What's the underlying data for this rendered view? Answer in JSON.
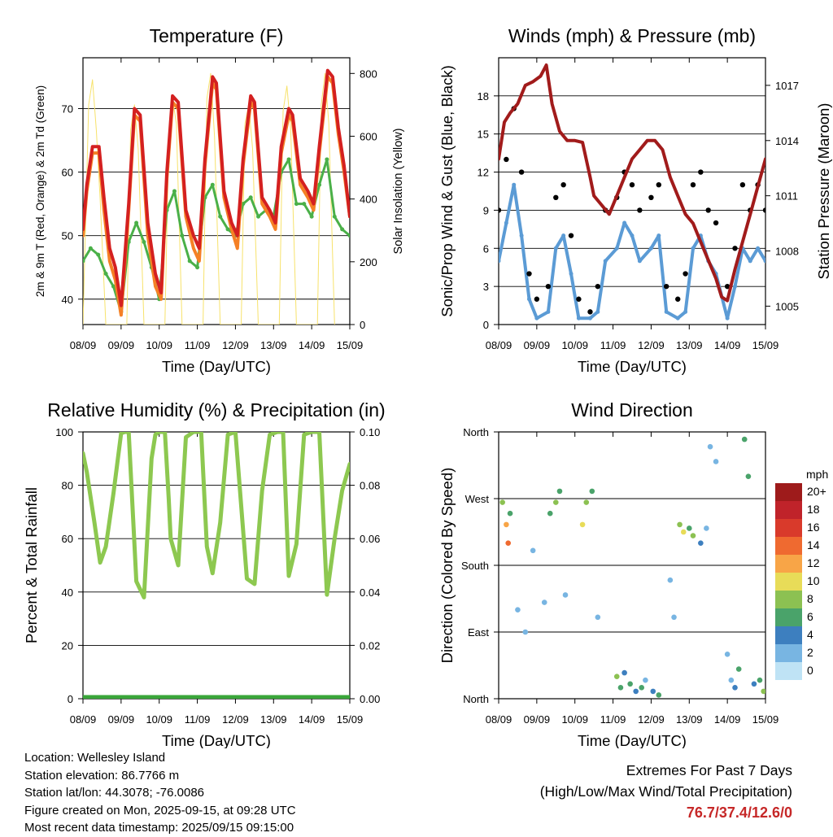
{
  "footer": {
    "location": "Location: Wellesley Island",
    "elevation": "Station elevation: 86.7766 m",
    "latlon": "Station lat/lon: 44.3078; -76.0086",
    "created": "Figure created on Mon, 2025-09-15, at 09:28 UTC",
    "timestamp": "Most recent data timestamp: 2025/09/15 09:15:00",
    "extremes_title": "Extremes For Past 7 Days",
    "extremes_sub": "(High/Low/Max Wind/Total Precipitation)",
    "extremes_values": "76.7/37.4/12.6/0"
  },
  "colors": {
    "temp_9m": "#d42020",
    "temp_2m": "#f58025",
    "dewpoint": "#4ab048",
    "solar": "#f7e26b",
    "wind": "#5b9bd5",
    "gust": "#000000",
    "pressure": "#a11b1b",
    "humidity": "#8dc850",
    "precip": "#3aa63a"
  },
  "chart_data": [
    {
      "id": "temperature",
      "type": "line",
      "title": "Temperature (F)",
      "xlabel": "Time (Day/UTC)",
      "ylabel": "2m & 9m T (Red, Orange) & 2m Td (Green)",
      "y2label": "Solar Insolation (Yellow)",
      "x_ticks": [
        "08/09",
        "09/09",
        "10/09",
        "11/09",
        "12/09",
        "13/09",
        "14/09",
        "15/09"
      ],
      "xlim": [
        0,
        7
      ],
      "ylim": [
        36,
        78
      ],
      "y_ticks": [
        40,
        50,
        60,
        70
      ],
      "y2lim": [
        0,
        850
      ],
      "y2_ticks": [
        0,
        200,
        400,
        600,
        800
      ],
      "grid": true,
      "series": [
        {
          "name": "9m T",
          "color_key": "temp_9m",
          "x": [
            0,
            0.1,
            0.25,
            0.42,
            0.55,
            0.7,
            0.85,
            1.0,
            1.2,
            1.35,
            1.5,
            1.7,
            1.9,
            2.05,
            2.2,
            2.35,
            2.5,
            2.7,
            2.9,
            3.05,
            3.2,
            3.4,
            3.5,
            3.7,
            3.9,
            4.05,
            4.2,
            4.4,
            4.5,
            4.7,
            4.9,
            5.05,
            5.2,
            5.4,
            5.5,
            5.7,
            5.9,
            6.05,
            6.2,
            6.42,
            6.55,
            6.7,
            6.85,
            7.0
          ],
          "y": [
            51,
            58,
            64,
            64,
            56,
            48,
            45,
            39,
            55,
            70,
            69,
            52,
            44,
            41,
            60,
            72,
            71,
            54,
            50,
            48,
            62,
            75,
            74,
            57,
            52,
            50,
            62,
            72,
            71,
            56,
            54,
            52,
            64,
            70,
            69,
            59,
            57,
            55,
            64,
            76,
            75,
            67,
            61,
            53
          ]
        },
        {
          "name": "2m T",
          "color_key": "temp_2m",
          "x": [
            0,
            0.1,
            0.25,
            0.42,
            0.55,
            0.7,
            0.85,
            1.0,
            1.2,
            1.35,
            1.5,
            1.7,
            1.9,
            2.05,
            2.2,
            2.35,
            2.5,
            2.7,
            2.9,
            3.05,
            3.2,
            3.4,
            3.5,
            3.7,
            3.9,
            4.05,
            4.2,
            4.4,
            4.5,
            4.7,
            4.9,
            5.05,
            5.2,
            5.4,
            5.5,
            5.7,
            5.9,
            6.05,
            6.2,
            6.42,
            6.55,
            6.7,
            6.85,
            7.0
          ],
          "y": [
            50,
            57,
            63,
            63,
            54,
            46,
            43,
            37.5,
            54,
            69,
            68,
            50,
            42,
            40,
            59,
            71,
            70,
            53,
            48,
            46,
            61,
            74,
            73,
            56,
            51,
            48,
            61,
            71,
            70,
            55,
            53,
            51,
            63,
            69,
            68,
            58,
            56,
            54,
            63,
            75,
            74,
            66,
            60,
            53
          ]
        },
        {
          "name": "2m Td",
          "color_key": "dewpoint",
          "x": [
            0,
            0.2,
            0.4,
            0.6,
            0.8,
            1.0,
            1.2,
            1.4,
            1.6,
            1.8,
            2.0,
            2.2,
            2.4,
            2.6,
            2.8,
            3.0,
            3.2,
            3.4,
            3.6,
            3.8,
            4.0,
            4.2,
            4.4,
            4.6,
            4.8,
            5.0,
            5.2,
            5.4,
            5.6,
            5.8,
            6.0,
            6.2,
            6.4,
            6.6,
            6.8,
            7.0
          ],
          "y": [
            46,
            48,
            47,
            44,
            42,
            38,
            49,
            52,
            49,
            45,
            40,
            54,
            57,
            50,
            46,
            45,
            56,
            58,
            53,
            51,
            50,
            55,
            56,
            53,
            54,
            53,
            60,
            62,
            55,
            55,
            53,
            58,
            62,
            53,
            51,
            50
          ]
        },
        {
          "name": "Solar",
          "color_key": "solar",
          "axis": "y2",
          "x": [
            0,
            0.15,
            0.25,
            0.35,
            0.45,
            0.6,
            1.15,
            1.25,
            1.35,
            1.45,
            1.6,
            2.15,
            2.25,
            2.35,
            2.45,
            2.6,
            3.15,
            3.25,
            3.35,
            3.45,
            3.6,
            4.15,
            4.25,
            4.35,
            4.45,
            4.6,
            5.15,
            5.25,
            5.35,
            5.45,
            5.6,
            6.15,
            6.25,
            6.35,
            6.45,
            6.6
          ],
          "y": [
            0,
            700,
            780,
            620,
            400,
            0,
            0,
            620,
            700,
            560,
            0,
            0,
            580,
            720,
            640,
            0,
            0,
            720,
            800,
            600,
            0,
            0,
            640,
            700,
            560,
            0,
            0,
            680,
            760,
            620,
            0,
            0,
            700,
            800,
            640,
            0
          ]
        }
      ]
    },
    {
      "id": "winds",
      "type": "scatter",
      "title": "Winds (mph) & Pressure (mb)",
      "xlabel": "Time (Day/UTC)",
      "ylabel": "Sonic/Prop Wind & Gust (Blue, Black)",
      "y2label": "Station Pressure (Maroon)",
      "x_ticks": [
        "08/09",
        "09/09",
        "10/09",
        "11/09",
        "12/09",
        "13/09",
        "14/09",
        "15/09"
      ],
      "xlim": [
        0,
        7
      ],
      "ylim": [
        0,
        21
      ],
      "y_ticks": [
        0,
        3,
        6,
        9,
        12,
        15,
        18
      ],
      "y2lim": [
        1004,
        1018.5
      ],
      "y2_ticks": [
        1005,
        1008,
        1011,
        1014,
        1017
      ],
      "grid": true,
      "series": [
        {
          "name": "Sonic/Prop Wind",
          "color_key": "wind",
          "x": [
            0,
            0.2,
            0.4,
            0.6,
            0.8,
            1.0,
            1.3,
            1.5,
            1.7,
            1.9,
            2.1,
            2.4,
            2.6,
            2.8,
            3.1,
            3.3,
            3.5,
            3.7,
            4.0,
            4.2,
            4.4,
            4.7,
            4.9,
            5.1,
            5.3,
            5.5,
            5.7,
            6.0,
            6.2,
            6.4,
            6.6,
            6.8,
            7.0
          ],
          "y": [
            5,
            8,
            11,
            7,
            2,
            0.5,
            1,
            6,
            7,
            4,
            0.5,
            0.5,
            1,
            5,
            6,
            8,
            7,
            5,
            6,
            7,
            1,
            0.5,
            1,
            6,
            7,
            5,
            4,
            0.5,
            3,
            6,
            5,
            6,
            5
          ]
        },
        {
          "name": "Gust",
          "color_key": "gust",
          "x": [
            0,
            0.2,
            0.4,
            0.6,
            0.8,
            1.0,
            1.3,
            1.5,
            1.7,
            1.9,
            2.1,
            2.4,
            2.6,
            2.8,
            3.1,
            3.3,
            3.5,
            3.7,
            4.0,
            4.2,
            4.4,
            4.7,
            4.9,
            5.1,
            5.3,
            5.5,
            5.7,
            6.0,
            6.2,
            6.4,
            6.6,
            6.8,
            7.0
          ],
          "y": [
            9,
            13,
            17,
            12,
            4,
            2,
            3,
            10,
            11,
            7,
            2,
            1,
            3,
            9,
            10,
            12,
            11,
            9,
            10,
            11,
            3,
            2,
            4,
            11,
            12,
            9,
            8,
            3,
            6,
            11,
            9,
            11,
            9
          ]
        },
        {
          "name": "Station Pressure",
          "color_key": "pressure",
          "axis": "y2",
          "x": [
            0,
            0.15,
            0.3,
            0.5,
            0.7,
            0.9,
            1.1,
            1.25,
            1.4,
            1.6,
            1.8,
            2.0,
            2.2,
            2.4,
            2.5,
            2.7,
            2.9,
            3.1,
            3.3,
            3.5,
            3.7,
            3.9,
            4.1,
            4.3,
            4.5,
            4.7,
            4.9,
            5.1,
            5.3,
            5.5,
            5.7,
            5.85,
            6.0,
            6.2,
            6.4,
            6.6,
            6.8,
            7.0
          ],
          "y": [
            1013,
            1015,
            1015.5,
            1016,
            1017,
            1017.2,
            1017.5,
            1018.1,
            1016,
            1014.5,
            1014,
            1014,
            1013.9,
            1012,
            1011,
            1010.5,
            1010,
            1011,
            1012,
            1013,
            1013.5,
            1014,
            1014,
            1013.5,
            1012,
            1011,
            1010,
            1009.5,
            1008.5,
            1007.5,
            1006.5,
            1005.5,
            1005.3,
            1007,
            1008.5,
            1010,
            1011.5,
            1013
          ]
        }
      ]
    },
    {
      "id": "humidity",
      "type": "line",
      "title": "Relative Humidity (%) & Precipitation (in)",
      "xlabel": "Time (Day/UTC)",
      "ylabel": "Percent & Total Rainfall",
      "x_ticks": [
        "08/09",
        "09/09",
        "10/09",
        "11/09",
        "12/09",
        "13/09",
        "14/09",
        "15/09"
      ],
      "xlim": [
        0,
        7
      ],
      "ylim": [
        0,
        100
      ],
      "y_ticks": [
        0,
        20,
        40,
        60,
        80,
        100
      ],
      "y2lim": [
        0,
        0.1
      ],
      "y2_ticks": [
        "0.00",
        "0.02",
        "0.04",
        "0.06",
        "0.08",
        "0.10"
      ],
      "grid": true,
      "series": [
        {
          "name": "RH",
          "color_key": "humidity",
          "x": [
            0,
            0.1,
            0.3,
            0.45,
            0.6,
            0.8,
            1.0,
            1.1,
            1.2,
            1.4,
            1.6,
            1.8,
            1.9,
            2.0,
            2.15,
            2.25,
            2.3,
            2.4,
            2.5,
            2.7,
            2.9,
            3.1,
            3.25,
            3.4,
            3.6,
            3.8,
            4.0,
            4.3,
            4.5,
            4.7,
            4.9,
            5.1,
            5.25,
            5.4,
            5.6,
            5.8,
            6.0,
            6.2,
            6.4,
            6.6,
            6.8,
            7.0
          ],
          "y": [
            92,
            85,
            66,
            51,
            57,
            77,
            99.5,
            100,
            100,
            44,
            38,
            90,
            99,
            100,
            100,
            75,
            60,
            55,
            50,
            98,
            100,
            100,
            57,
            47,
            66,
            99,
            100,
            45,
            43,
            78,
            99,
            100,
            100,
            46,
            58,
            99,
            100,
            100,
            39,
            60,
            78,
            88
          ]
        },
        {
          "name": "Total Rainfall",
          "color_key": "precip",
          "axis": "y2",
          "x": [
            0,
            7
          ],
          "y": [
            0,
            0
          ]
        }
      ]
    },
    {
      "id": "direction",
      "type": "scatter",
      "title": "Wind Direction",
      "xlabel": "Time (Day/UTC)",
      "ylabel": "Direction (Colored By Speed)",
      "x_ticks": [
        "08/09",
        "09/09",
        "10/09",
        "11/09",
        "12/09",
        "13/09",
        "14/09",
        "15/09"
      ],
      "xlim": [
        0,
        7
      ],
      "ylim": [
        0,
        360
      ],
      "y_ticks": [
        "North",
        "East",
        "South",
        "West",
        "North"
      ],
      "grid": true,
      "legend": {
        "title": "mph",
        "labels": [
          "20+",
          "18",
          "16",
          "14",
          "12",
          "10",
          "8",
          "6",
          "4",
          "2",
          "0"
        ],
        "colors": [
          "#9e1b1b",
          "#c0232a",
          "#d93a2b",
          "#ef6a30",
          "#f8a547",
          "#e8dc58",
          "#8cc152",
          "#4aa36a",
          "#3d7fbf",
          "#78b5e2",
          "#bfe3f5"
        ]
      },
      "series": [
        {
          "name": "Direction",
          "x": [
            0.1,
            0.2,
            0.25,
            0.3,
            0.5,
            0.7,
            0.9,
            1.2,
            1.35,
            1.5,
            1.6,
            1.75,
            2.2,
            2.3,
            2.45,
            2.6,
            3.1,
            3.2,
            3.3,
            3.45,
            3.6,
            3.75,
            3.85,
            4.05,
            4.2,
            4.5,
            4.6,
            4.75,
            4.85,
            5.0,
            5.1,
            5.3,
            5.45,
            5.55,
            5.7,
            6.0,
            6.1,
            6.2,
            6.3,
            6.45,
            6.55,
            6.7,
            6.85,
            6.95
          ],
          "y": [
            265,
            235,
            210,
            250,
            120,
            90,
            200,
            130,
            250,
            265,
            280,
            140,
            235,
            265,
            280,
            110,
            30,
            15,
            35,
            20,
            10,
            15,
            25,
            10,
            5,
            160,
            110,
            235,
            225,
            230,
            220,
            210,
            230,
            340,
            320,
            60,
            25,
            15,
            40,
            350,
            300,
            20,
            25,
            10
          ],
          "speeds": [
            8,
            12,
            14,
            6,
            2,
            1,
            2,
            2,
            6,
            8,
            6,
            2,
            10,
            8,
            6,
            2,
            8,
            6,
            4,
            6,
            4,
            6,
            2,
            4,
            6,
            2,
            2,
            8,
            10,
            6,
            8,
            4,
            2,
            2,
            2,
            2,
            2,
            4,
            6,
            6,
            6,
            4,
            6,
            8
          ]
        }
      ]
    }
  ]
}
